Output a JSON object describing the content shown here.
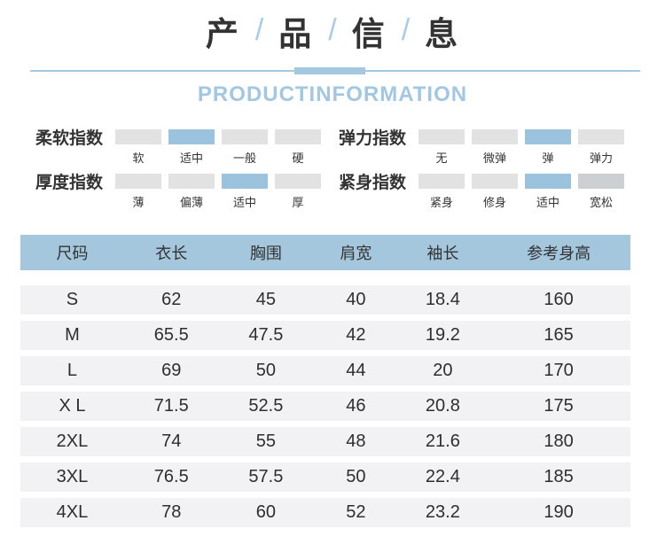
{
  "header": {
    "title_chars": [
      "产",
      "品",
      "信",
      "息"
    ],
    "separator": "/",
    "subtitle": "PRODUCTINFORMATION"
  },
  "indices": [
    {
      "label": "柔软指数",
      "options": [
        "软",
        "适中",
        "一般",
        "硬"
      ],
      "selected_index": 1
    },
    {
      "label": "弹力指数",
      "options": [
        "无",
        "微弹",
        "弹",
        "弹力"
      ],
      "selected_index": 2
    },
    {
      "label": "厚度指数",
      "options": [
        "薄",
        "偏薄",
        "适中",
        "厚"
      ],
      "selected_index": 2
    },
    {
      "label": "紧身指数",
      "options": [
        "紧身",
        "修身",
        "适中",
        "宽松"
      ],
      "selected_index": 2,
      "dim_index": 3
    }
  ],
  "size_chart": {
    "columns": [
      "尺码",
      "衣长",
      "胸围",
      "肩宽",
      "袖长",
      "参考身高"
    ],
    "rows": [
      [
        "S",
        "62",
        "45",
        "40",
        "18.4",
        "160"
      ],
      [
        "M",
        "65.5",
        "47.5",
        "42",
        "19.2",
        "165"
      ],
      [
        "L",
        "69",
        "50",
        "44",
        "20",
        "170"
      ],
      [
        "X L",
        "71.5",
        "52.5",
        "46",
        "20.8",
        "175"
      ],
      [
        "2XL",
        "74",
        "55",
        "48",
        "21.6",
        "180"
      ],
      [
        "3XL",
        "76.5",
        "57.5",
        "50",
        "22.4",
        "185"
      ],
      [
        "4XL",
        "78",
        "60",
        "52",
        "23.2",
        "190"
      ]
    ]
  },
  "colors": {
    "accent_blue": "#9cc3de",
    "table_header_blue": "#a5c7de",
    "subtitle_blue": "#a2c7e3",
    "segment_gray": "#e2e2e2",
    "segment_gray_dark": "#cdd0d3",
    "row_stripe_gray": "#f2f1f4",
    "text_dark": "#333333"
  }
}
